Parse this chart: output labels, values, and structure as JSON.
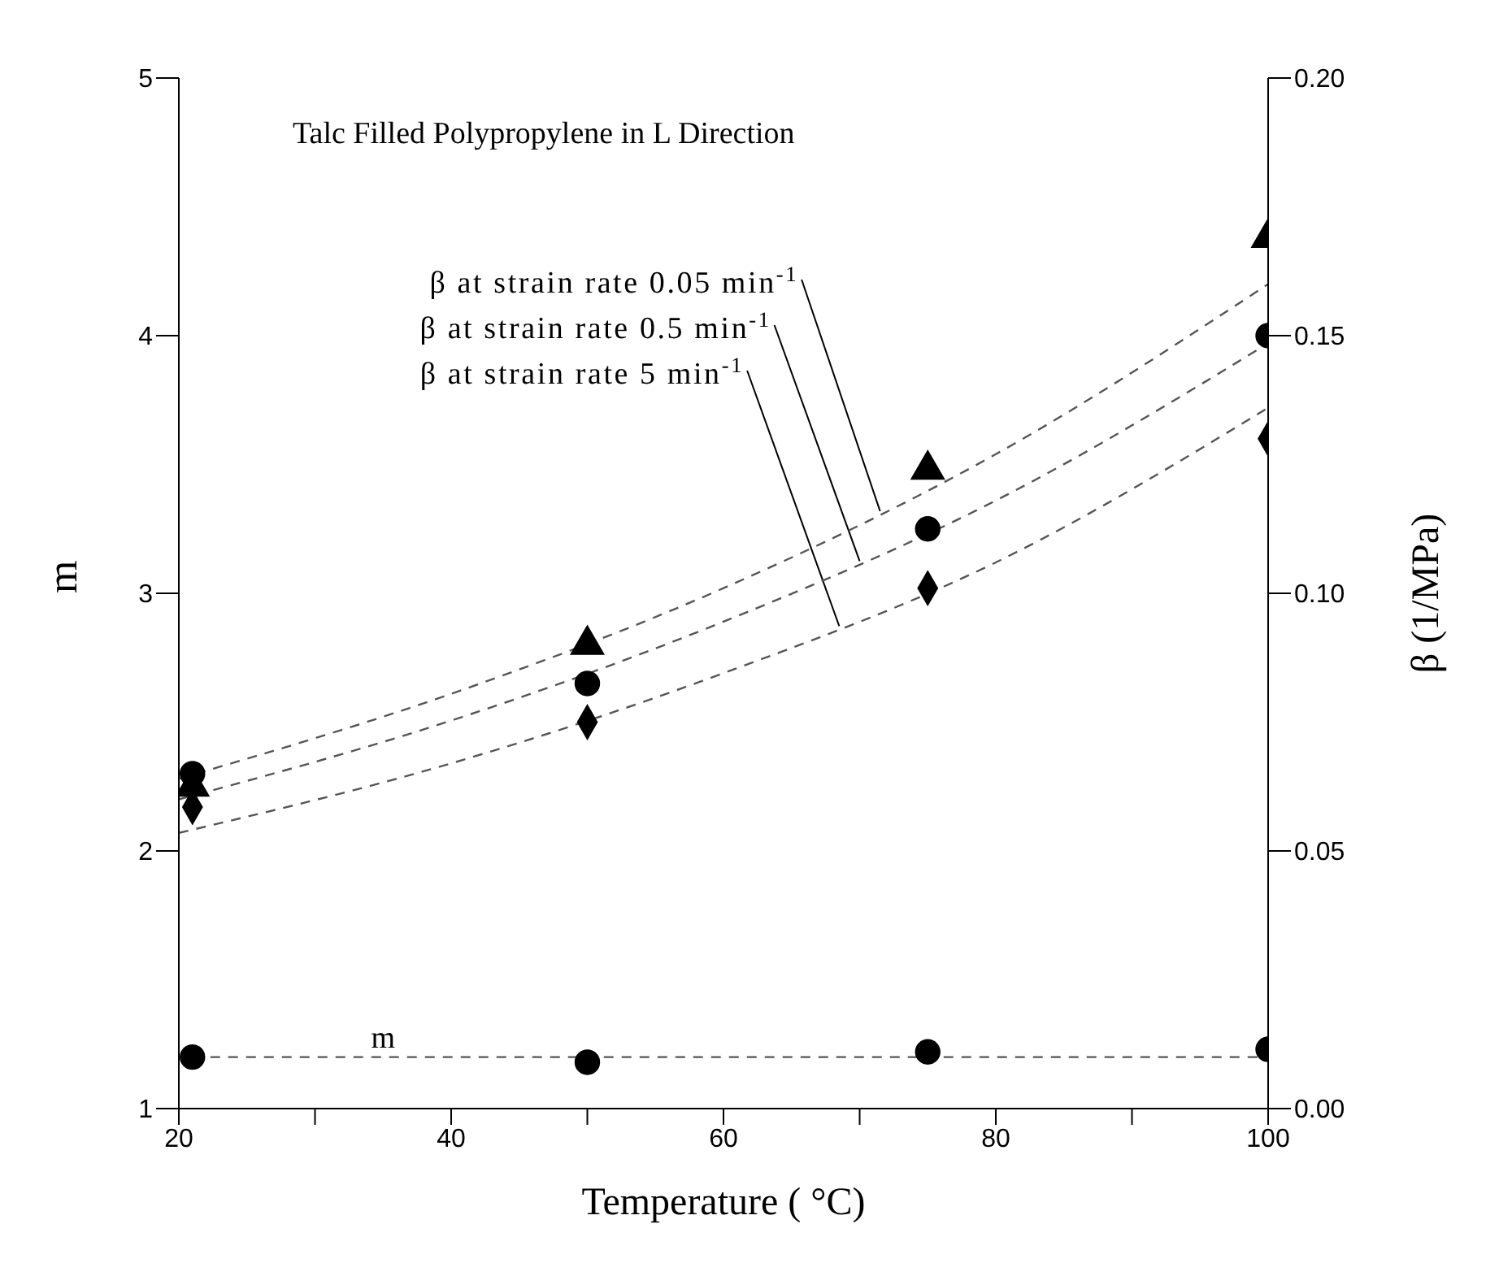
{
  "chart_data": {
    "type": "scatter",
    "title": "Talc Filled Polypropylene in L Direction",
    "xlabel": "Temperature ( °C)",
    "ylabel": "m",
    "y2label": "β (1/MPa)",
    "x": [
      21,
      50,
      75,
      100
    ],
    "xlim": [
      20,
      100
    ],
    "xticks": [
      20,
      {
        "value": 30,
        "label": null
      },
      40,
      {
        "value": 50,
        "label": null
      },
      60,
      {
        "value": 70,
        "label": null
      },
      80,
      {
        "value": 90,
        "label": null
      },
      100
    ],
    "ylim": [
      1,
      5
    ],
    "yticks": [
      1,
      2,
      3,
      4,
      5
    ],
    "y2lim": [
      0,
      0.2
    ],
    "y2ticks": [
      {
        "value": 0,
        "label": "0.00"
      },
      {
        "value": 0.05,
        "label": "0.05"
      },
      {
        "value": 0.1,
        "label": "0.10"
      },
      {
        "value": 0.15,
        "label": "0.15"
      },
      {
        "value": 0.2,
        "label": "0.20"
      }
    ],
    "series": [
      {
        "color": "#000000",
        "marker": "triangle",
        "axis": "y2",
        "values": [
          0.0625,
          0.09,
          0.124,
          0.169
        ]
      },
      {
        "color": "#000000",
        "marker": "circle",
        "axis": "y2",
        "values": [
          0.065,
          0.0825,
          0.1125,
          0.15
        ]
      },
      {
        "color": "#000000",
        "marker": "diamond",
        "axis": "y2",
        "values": [
          0.0585,
          0.075,
          0.101,
          0.13
        ]
      },
      {
        "color": "#000000",
        "marker": "circle",
        "values": [
          1.2,
          1.18,
          1.22,
          1.23
        ]
      },
      {
        "name": "β at strain rate 0.05 min$^{-1}$",
        "type": "line",
        "color": "#555555",
        "marker": "none",
        "line_style": "dashed",
        "axis": "y2",
        "x": [
          20,
          40,
          60,
          80,
          100
        ],
        "values": [
          0.064,
          0.0805,
          0.101,
          0.127,
          0.16
        ]
      },
      {
        "name": "β at strain rate 0.5 min$^{-1}$",
        "type": "line",
        "color": "#555555",
        "marker": "none",
        "line_style": "dashed",
        "axis": "y2",
        "x": [
          20,
          40,
          60,
          80,
          100
        ],
        "values": [
          0.06,
          0.0753,
          0.0945,
          0.118,
          0.1485
        ]
      },
      {
        "name": "β at strain rate 5 min$^{-1}$",
        "type": "line",
        "color": "#555555",
        "marker": "none",
        "line_style": "dashed",
        "axis": "y2",
        "x": [
          20,
          40,
          60,
          80,
          100
        ],
        "values": [
          0.0535,
          0.067,
          0.0845,
          0.106,
          0.136
        ]
      },
      {
        "name": "m",
        "type": "line",
        "color": "#555555",
        "marker": "none",
        "line_style": "dashed",
        "x": [
          21,
          100
        ],
        "values": [
          1.2,
          1.2
        ]
      }
    ],
    "legend": false,
    "grid": false
  }
}
